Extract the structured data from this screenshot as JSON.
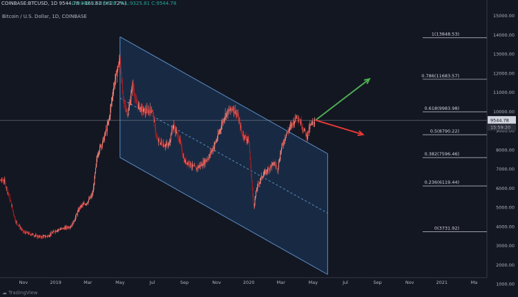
{
  "header": {
    "symbol_line": "COINBASE:BTCUSD, 1D 9544.78 +161.62 (+1.72%)",
    "ohlc": "O:9380.01 H:9576.74 L:9325.81 C:9544.78"
  },
  "title": "Bitcoin / U.S. Dollar, 1D, COINBASE",
  "price_label": "9544.78",
  "countdown_label": "15:59:20",
  "footer_brand": "TradingView",
  "colors": {
    "background": "#131722",
    "channel_fill": "#1e3a5f",
    "channel_stroke": "#5b8fc9",
    "up_candle": "#ff8a80",
    "down_candle": "#b71c1c",
    "green_arrow": "#4caf50",
    "red_arrow": "#e53935"
  },
  "chart_data": {
    "type": "line",
    "title": "Bitcoin / U.S. Dollar, 1D, COINBASE",
    "x_ticks": [
      "Nov",
      "2019",
      "Mar",
      "May",
      "Jul",
      "Sep",
      "Nov",
      "2020",
      "Mar",
      "May",
      "Jul",
      "Sep",
      "Nov",
      "2021",
      "Ma"
    ],
    "y_ticks": [
      1000,
      2000,
      3000,
      4000,
      5000,
      6000,
      7000,
      8000,
      9000,
      10000,
      11000,
      12000,
      13000,
      14000,
      15000
    ],
    "ylim": [
      700,
      15100
    ],
    "x_range_months": [
      -1.1,
      30.4
    ],
    "price_series": {
      "x_months": [
        -2.0,
        -1.2,
        -0.9,
        -0.5,
        0.0,
        0.5,
        1.0,
        1.5,
        2.0,
        2.5,
        3.0,
        3.5,
        4.0,
        4.3,
        4.6,
        5.0,
        5.3,
        5.6,
        6.0,
        6.2,
        6.5,
        6.8,
        7.0,
        7.5,
        8.0,
        8.3,
        8.7,
        9.0,
        9.3,
        9.7,
        10.0,
        10.3,
        10.7,
        11.0,
        11.5,
        12.0,
        12.5,
        13.0,
        13.3,
        13.6,
        14.0,
        14.3,
        14.5,
        14.8,
        15.0,
        15.3,
        15.6,
        15.8,
        16.0,
        16.3,
        16.6,
        17.0,
        17.3,
        17.6,
        17.8,
        18.0,
        18.1
      ],
      "y": [
        6400,
        6400,
        5600,
        4300,
        3700,
        3600,
        3450,
        3500,
        3800,
        3900,
        4050,
        5000,
        5300,
        5700,
        7800,
        8600,
        9500,
        11300,
        12800,
        10500,
        9900,
        11500,
        10400,
        10000,
        10100,
        8500,
        8300,
        8200,
        9300,
        8500,
        7400,
        7300,
        7000,
        7200,
        7600,
        8500,
        9800,
        10200,
        9800,
        8800,
        8500,
        5000,
        6000,
        6600,
        6800,
        7100,
        7300,
        7000,
        8000,
        8800,
        9200,
        9800,
        9300,
        8700,
        9200,
        9400,
        9545
      ]
    },
    "regression_channel": {
      "start_month": 6.0,
      "end_month": 18.9,
      "upper": [
        13900,
        7800
      ],
      "middle": [
        10700,
        4700
      ],
      "lower": [
        7600,
        1500
      ]
    },
    "fib_levels": [
      {
        "label": "1(13848.53)",
        "value": 13848.53
      },
      {
        "label": "0.786(11683.57)",
        "value": 11683.57
      },
      {
        "label": "0.618(9983.98)",
        "value": 9983.98
      },
      {
        "label": "0.5(8790.22)",
        "value": 8790.22
      },
      {
        "label": "0.382(7596.46)",
        "value": 7596.46
      },
      {
        "label": "0.236(6119.44)",
        "value": 6119.44
      },
      {
        "label": "0(3731.92)",
        "value": 3731.92
      }
    ],
    "last_price": 9544.78,
    "arrows": [
      {
        "color": "green",
        "from": [
          18.15,
          9550
        ],
        "to": [
          21.5,
          11700
        ]
      },
      {
        "color": "red",
        "from": [
          18.15,
          9550
        ],
        "to": [
          21.1,
          8800
        ]
      }
    ]
  }
}
